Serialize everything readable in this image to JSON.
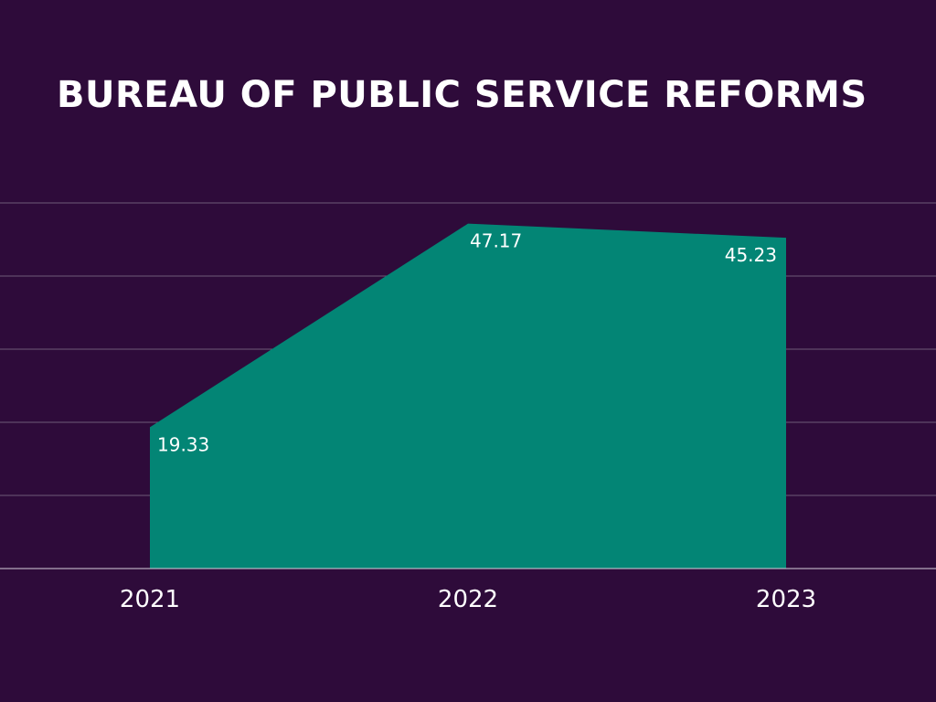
{
  "colors": {
    "background": "#2e0b3a",
    "area": "#038575",
    "gridline": "#6e5b78",
    "baseline": "#d8d0dc",
    "text": "#ffffff"
  },
  "chart_data": {
    "type": "area",
    "title": "BUREAU OF PUBLIC SERVICE REFORMS",
    "xlabel": "",
    "ylabel": "",
    "categories": [
      "2021",
      "2022",
      "2023"
    ],
    "values": [
      19.33,
      47.17,
      45.23
    ],
    "value_labels": [
      "19.33",
      "47.17",
      "45.23"
    ],
    "ylim": [
      0,
      50
    ],
    "grid": true,
    "y_ticks": [
      0,
      10,
      20,
      30,
      40,
      50
    ],
    "legend": "none"
  }
}
